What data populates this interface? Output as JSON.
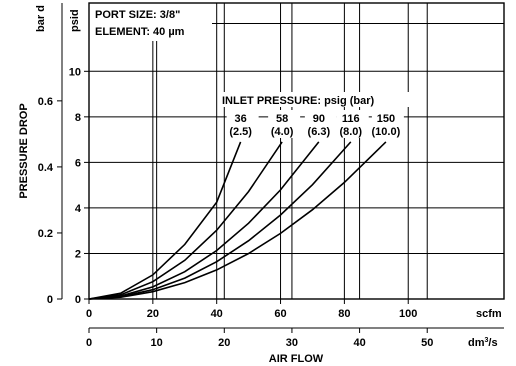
{
  "chart_data": {
    "type": "line",
    "header": {
      "port_size": "PORT SIZE: 3/8\"",
      "element": "ELEMENT: 40 µm"
    },
    "xlabel": "AIR FLOW",
    "ylabel": "PRESSURE DROP",
    "x_axis_primary": {
      "unit": "scfm",
      "range": [
        0,
        130
      ],
      "ticks": [
        0,
        20,
        40,
        60,
        80,
        100
      ],
      "tick_labels": [
        "0",
        "20",
        "40",
        "60",
        "80",
        "100"
      ]
    },
    "x_axis_secondary": {
      "unit": "dm³/s",
      "range": [
        0,
        61.35
      ],
      "ticks": [
        0,
        10,
        20,
        30,
        40,
        50
      ],
      "tick_labels": [
        "0",
        "10",
        "20",
        "30",
        "40",
        "50"
      ]
    },
    "y_axis_primary": {
      "unit": "psid",
      "range": [
        0,
        13
      ],
      "ticks": [
        0,
        2,
        4,
        6,
        8,
        10
      ],
      "tick_labels": [
        "0",
        "2",
        "4",
        "6",
        "8",
        "10"
      ]
    },
    "y_axis_secondary": {
      "unit": "bar d",
      "ticks": [
        0,
        0.2,
        0.4,
        0.6
      ],
      "tick_labels": [
        "0",
        "0.2",
        "0.4",
        "0.6"
      ]
    },
    "grid": true,
    "legend_title": "INLET PRESSURE: psig  (bar)",
    "series": [
      {
        "psig": "36",
        "bar": "(2.5)",
        "x": [
          0,
          10,
          20,
          30,
          40,
          47.5
        ],
        "y": [
          0,
          0.26,
          1.06,
          2.4,
          4.25,
          6.9
        ]
      },
      {
        "psig": "58",
        "bar": "(4.0)",
        "x": [
          0,
          10,
          20,
          30,
          40,
          50,
          60.5
        ],
        "y": [
          0,
          0.19,
          0.76,
          1.7,
          3.02,
          4.72,
          6.9
        ]
      },
      {
        "psig": "90",
        "bar": "(6.3)",
        "x": [
          0,
          10,
          20,
          30,
          40,
          50,
          60,
          72
        ],
        "y": [
          0,
          0.13,
          0.53,
          1.2,
          2.13,
          3.33,
          4.79,
          6.9
        ]
      },
      {
        "psig": "116",
        "bar": "(8.0)",
        "x": [
          0,
          10,
          20,
          30,
          40,
          50,
          60,
          70,
          82
        ],
        "y": [
          0,
          0.1,
          0.41,
          0.92,
          1.64,
          2.56,
          3.69,
          5.02,
          6.9
        ]
      },
      {
        "psig": "150",
        "bar": "(10.0)",
        "x": [
          0,
          10,
          20,
          30,
          40,
          50,
          60,
          70,
          80,
          93
        ],
        "y": [
          0,
          0.08,
          0.32,
          0.72,
          1.28,
          2.0,
          2.88,
          3.92,
          5.12,
          6.9
        ]
      }
    ]
  }
}
